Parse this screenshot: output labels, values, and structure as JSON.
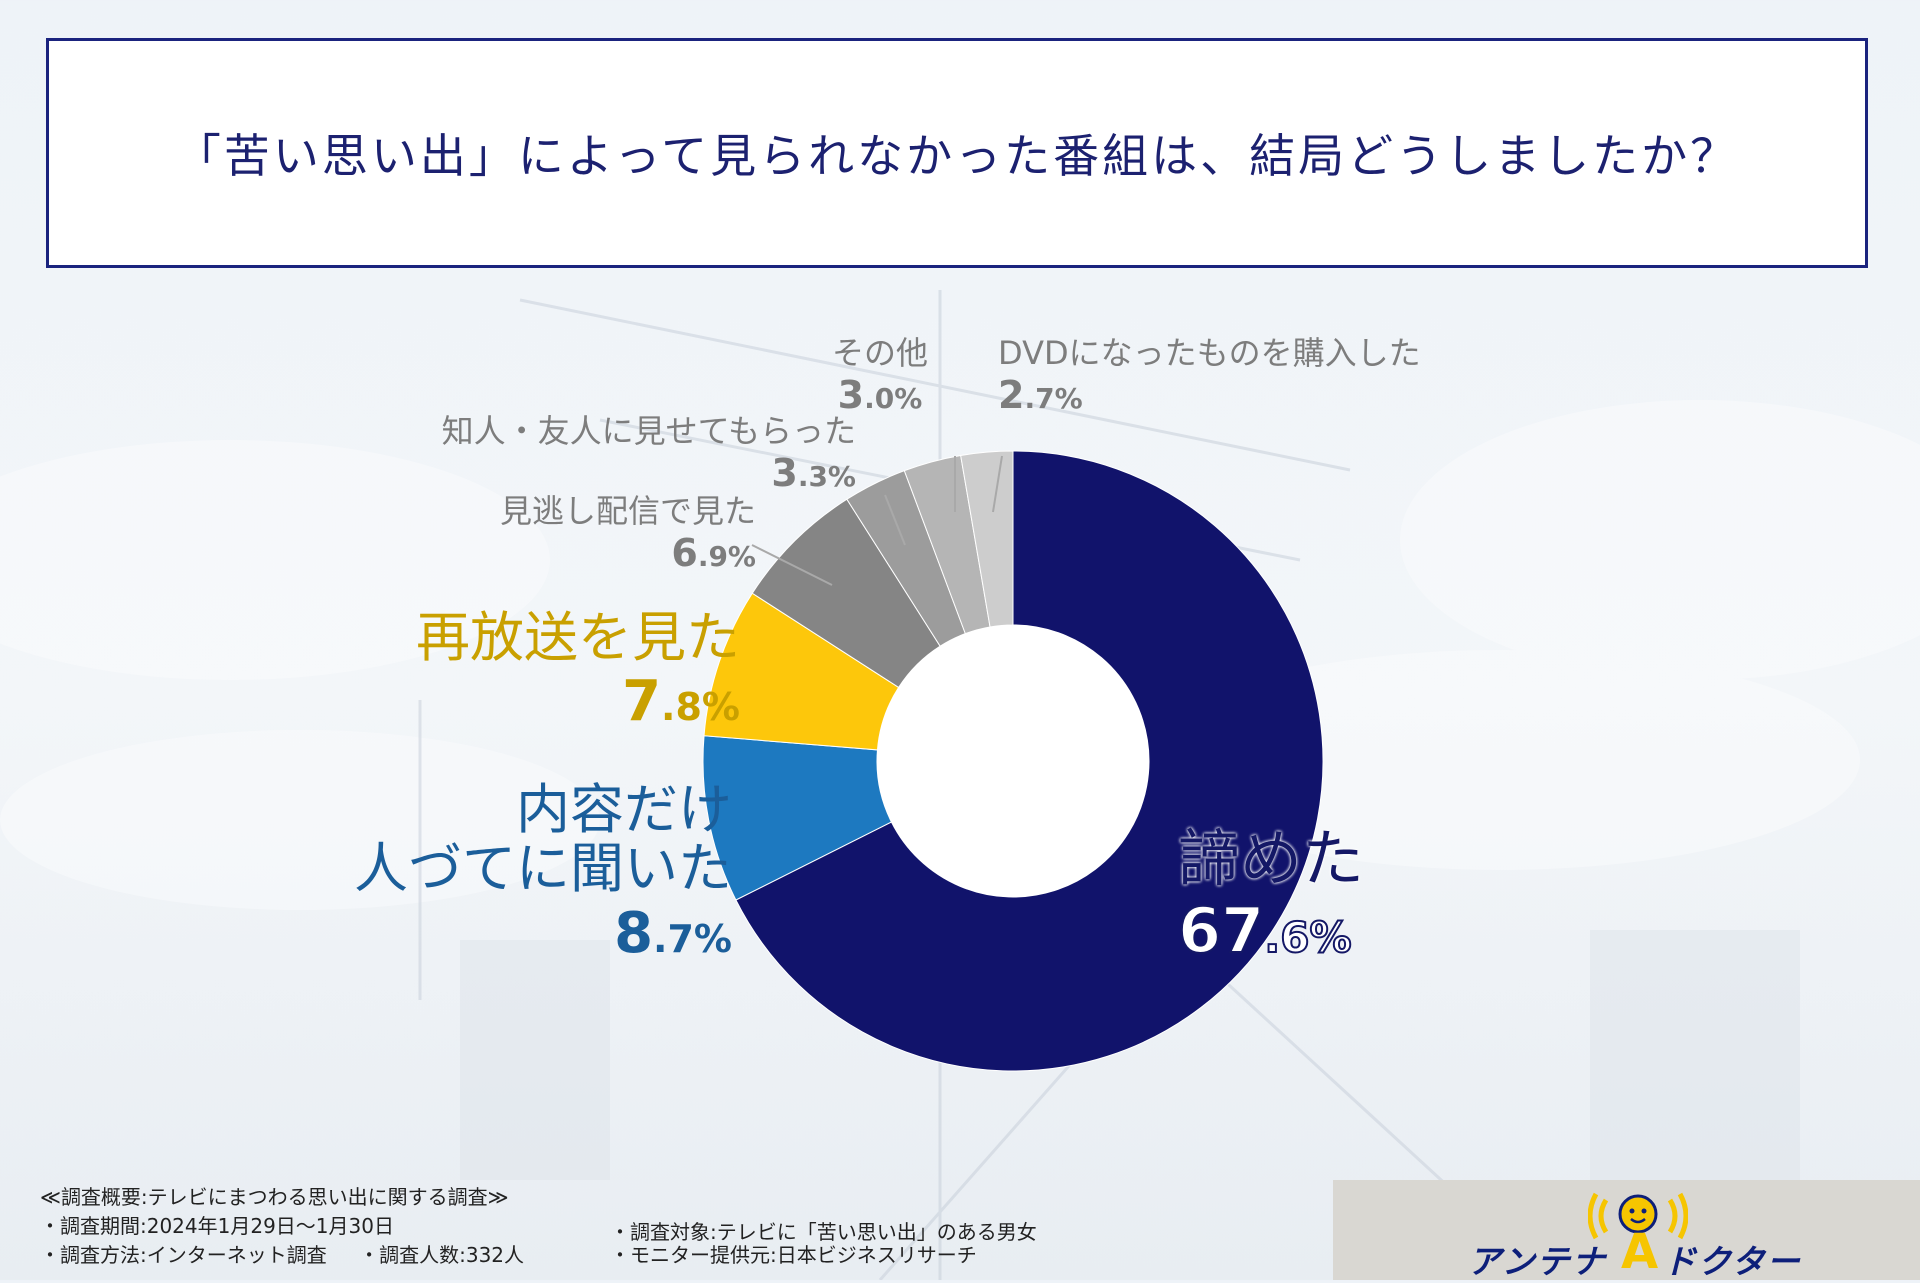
{
  "title": "「苦い思い出」によって見られなかった番組は、結局どうしましたか？",
  "chart_data": {
    "type": "pie",
    "title": "「苦い思い出」によって見られなかった番組は、結局どうしましたか？",
    "categories": [
      "諦めた",
      "内容だけ人づてに聞いた",
      "再放送を見た",
      "見逃し配信で見た",
      "知人・友人に見せてもらった",
      "その他",
      "DVDになったものを購入した"
    ],
    "values": [
      67.6,
      8.7,
      7.8,
      6.9,
      3.3,
      3.0,
      2.7
    ],
    "colors": [
      "#11136b",
      "#1d79c0",
      "#fdc70b",
      "#858585",
      "#9c9c9c",
      "#b5b5b5",
      "#cdcdcd"
    ],
    "donut": true,
    "start": "top, clockwise"
  },
  "labels": [
    {
      "name": [
        "諦めた"
      ],
      "pct_main": "67",
      "pct_rest": ".6%",
      "color": "#141866"
    },
    {
      "name": [
        "内容だけ",
        "人づてに聞いた"
      ],
      "pct_main": "8",
      "pct_rest": ".7%",
      "color": "#1b5e9a"
    },
    {
      "name": [
        "再放送を見た"
      ],
      "pct_main": "7",
      "pct_rest": ".8%",
      "color": "#c9a000"
    },
    {
      "name": [
        "見逃し配信で見た"
      ],
      "pct_main": "6",
      "pct_rest": ".9%",
      "color": "#7d7d7d"
    },
    {
      "name": [
        "知人・友人に見せてもらった"
      ],
      "pct_main": "3",
      "pct_rest": ".3%",
      "color": "#7d7d7d"
    },
    {
      "name": [
        "その他"
      ],
      "pct_main": "3",
      "pct_rest": ".0%",
      "color": "#7d7d7d"
    },
    {
      "name": [
        "DVDになったものを購入した"
      ],
      "pct_main": "2",
      "pct_rest": ".7%",
      "color": "#7d7d7d"
    }
  ],
  "footer": {
    "heading": "≪調査概要:テレビにまつわる思い出に関する調査≫",
    "period": "・調査期間:2024年1月29日～1月30日",
    "method": "・調査方法:インターネット調査",
    "count": "・調査人数:332人",
    "target": "・調査対象:テレビに「苦い思い出」のある男女",
    "provider": "・モニター提供元:日本ビジネスリサーチ"
  },
  "logo": {
    "text_left": "アンテナ",
    "letter": "A",
    "text_right": "ドクター",
    "colors": {
      "text": "#0d1f7a",
      "accent": "#f6c500"
    }
  }
}
